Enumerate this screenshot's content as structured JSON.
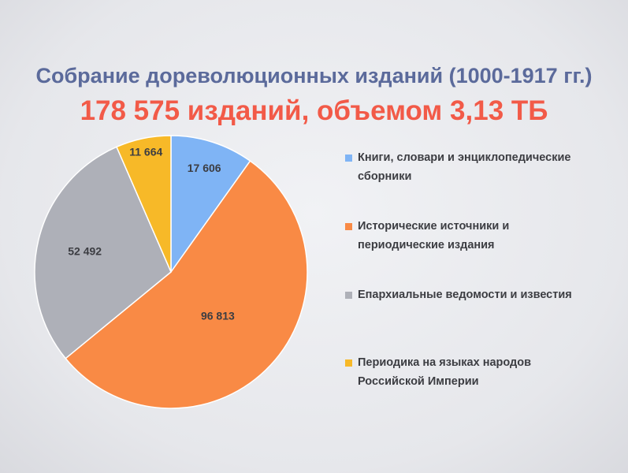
{
  "title": "Собрание дореволюционных изданий (1000-1917 гг.)",
  "subtitle": "178 575 изданий, объемом 3,13 ТБ",
  "chart_data": {
    "type": "pie",
    "start": "12 o'clock, clockwise",
    "legend_position": "right",
    "slices": [
      {
        "name": "Книги, словари и энциклопедические сборники",
        "value": 17606,
        "label": "17 606",
        "color": "#7fb4f5"
      },
      {
        "name": "Исторические источники и периодические издания",
        "value": 96813,
        "label": "96 813",
        "color": "#f98a45"
      },
      {
        "name": "Епархиальные ведомости и известия",
        "value": 52492,
        "label": "52 492",
        "color": "#aeb0b8"
      },
      {
        "name": "Периодика на языках народов Российской Империи",
        "value": 11664,
        "label": "11 664",
        "color": "#f7b928"
      }
    ]
  }
}
